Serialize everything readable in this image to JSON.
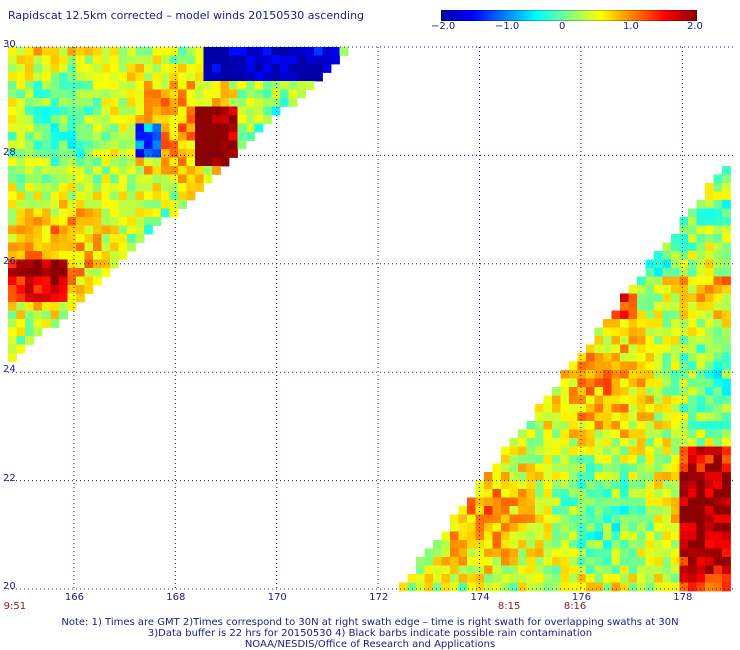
{
  "title": "Rapidscat 12.5km corrected – model winds 20150530 ascending",
  "colorbar": {
    "stops": [
      "#0000aa",
      "#0000ff",
      "#0080ff",
      "#00ffff",
      "#80ff80",
      "#ffff00",
      "#ff8000",
      "#ff0000",
      "#8b0000"
    ],
    "ticks": [
      {
        "label": "−2.0",
        "value": -2.0
      },
      {
        "label": "−1.0",
        "value": -1.0
      },
      {
        "label": "0",
        "value": 0
      },
      {
        "label": "1.0",
        "value": 1.0
      },
      {
        "label": "2.0",
        "value": 2.0
      }
    ],
    "range": [
      -2.0,
      2.0
    ]
  },
  "map": {
    "lon_range": [
      164.7,
      179.0
    ],
    "lat_range": [
      20,
      30
    ],
    "lon_ticks": [
      "166",
      "168",
      "170",
      "172",
      "174",
      "176",
      "178"
    ],
    "lat_ticks": [
      "20",
      "22",
      "24",
      "26",
      "28",
      "30"
    ]
  },
  "swaths": [
    {
      "id": "left",
      "time_label": "9:51",
      "lon_at_label": 164.7,
      "polygon_lonlat": [
        [
          164.7,
          30.0
        ],
        [
          171.5,
          30.0
        ],
        [
          164.7,
          24.1
        ]
      ]
    },
    {
      "id": "right",
      "time_label": "8:15",
      "lon_at_label": 177.2,
      "polygon_lonlat": [
        [
          172.4,
          20.0
        ],
        [
          179.0,
          20.0
        ],
        [
          179.0,
          28.0
        ]
      ]
    }
  ],
  "extra_times": [
    {
      "label": "8:15",
      "lon": 174.6
    },
    {
      "label": "8:16",
      "lon": 175.9
    }
  ],
  "notes": [
    "Note: 1) Times are GMT 2)Times correspond to 30N at right swath edge – time is right swath for overlapping swaths at 30N",
    "3)Data buffer is 22 hrs for 20150530 4) Black barbs indicate possible rain contamination",
    "NOAA/NESDIS/Office of Research and Applications"
  ]
}
